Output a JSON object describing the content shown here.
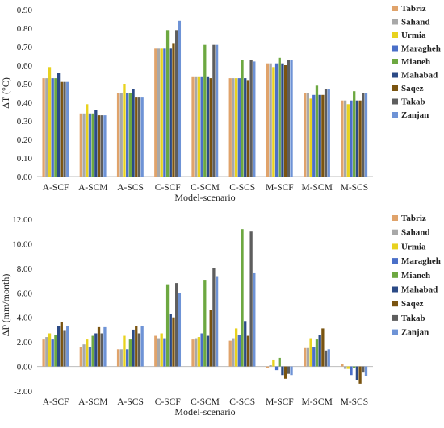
{
  "chart_data": [
    {
      "type": "bar",
      "ylabel": "ΔT (°C)",
      "xlabel": "Model-scenario",
      "categories": [
        "A-SCF",
        "A-SCM",
        "A-SCS",
        "C-SCF",
        "C-SCM",
        "C-SCS",
        "M-SCF",
        "M-SCM",
        "M-SCS"
      ],
      "ylim": [
        0,
        0.9
      ],
      "yticks": [
        "0.00",
        "0.10",
        "0.20",
        "0.30",
        "0.40",
        "0.50",
        "0.60",
        "0.70",
        "0.80",
        "0.90"
      ],
      "legend_position": "right",
      "series": [
        {
          "name": "Tabriz",
          "values": [
            0.53,
            0.34,
            0.45,
            0.69,
            0.54,
            0.53,
            0.61,
            0.45,
            0.41
          ]
        },
        {
          "name": "Sahand",
          "values": [
            0.53,
            0.34,
            0.45,
            0.69,
            0.54,
            0.53,
            0.61,
            0.45,
            0.41
          ]
        },
        {
          "name": "Urmia",
          "values": [
            0.59,
            0.39,
            0.5,
            0.69,
            0.54,
            0.53,
            0.59,
            0.42,
            0.39
          ]
        },
        {
          "name": "Maragheh",
          "values": [
            0.53,
            0.34,
            0.45,
            0.69,
            0.54,
            0.53,
            0.61,
            0.44,
            0.41
          ]
        },
        {
          "name": "Mianeh",
          "values": [
            0.53,
            0.34,
            0.45,
            0.79,
            0.71,
            0.63,
            0.64,
            0.49,
            0.46
          ]
        },
        {
          "name": "Mahabad",
          "values": [
            0.56,
            0.36,
            0.47,
            0.69,
            0.54,
            0.53,
            0.61,
            0.44,
            0.41
          ]
        },
        {
          "name": "Saqez",
          "values": [
            0.51,
            0.33,
            0.43,
            0.72,
            0.53,
            0.52,
            0.6,
            0.44,
            0.41
          ]
        },
        {
          "name": "Takab",
          "values": [
            0.51,
            0.33,
            0.43,
            0.79,
            0.71,
            0.63,
            0.63,
            0.47,
            0.45
          ]
        },
        {
          "name": "Zanjan",
          "values": [
            0.51,
            0.33,
            0.43,
            0.84,
            0.71,
            0.62,
            0.63,
            0.47,
            0.45
          ]
        }
      ]
    },
    {
      "type": "bar",
      "ylabel": "ΔP (mm/month)",
      "xlabel": "Model-scenario",
      "categories": [
        "A-SCF",
        "A-SCM",
        "A-SCS",
        "C-SCF",
        "C-SCM",
        "C-SCS",
        "M-SCF",
        "M-SCM",
        "M-SCS"
      ],
      "ylim": [
        -2,
        12
      ],
      "yticks": [
        "-2.00",
        "0.00",
        "2.00",
        "4.00",
        "6.00",
        "8.00",
        "10.00",
        "12.00"
      ],
      "legend_position": "right",
      "series": [
        {
          "name": "Tabriz",
          "values": [
            2.2,
            1.6,
            1.4,
            2.5,
            2.2,
            2.1,
            -0.1,
            1.5,
            0.2
          ]
        },
        {
          "name": "Sahand",
          "values": [
            2.4,
            1.8,
            1.4,
            2.3,
            2.3,
            2.3,
            0.1,
            1.5,
            -0.2
          ]
        },
        {
          "name": "Urmia",
          "values": [
            2.7,
            2.2,
            2.5,
            2.7,
            2.4,
            3.1,
            0.5,
            2.3,
            -0.2
          ]
        },
        {
          "name": "Maragheh",
          "values": [
            2.2,
            1.6,
            1.4,
            2.3,
            2.7,
            2.6,
            -0.3,
            1.6,
            -0.7
          ]
        },
        {
          "name": "Mianeh",
          "values": [
            2.6,
            2.5,
            2.2,
            6.7,
            7.0,
            11.2,
            0.7,
            2.2,
            -0.1
          ]
        },
        {
          "name": "Mahabad",
          "values": [
            3.3,
            2.7,
            3.0,
            4.3,
            2.5,
            3.7,
            -0.7,
            2.6,
            -1.1
          ]
        },
        {
          "name": "Saqez",
          "values": [
            3.6,
            3.2,
            3.3,
            4.0,
            4.6,
            2.5,
            -1.0,
            3.1,
            -1.4
          ]
        },
        {
          "name": "Takab",
          "values": [
            2.9,
            2.7,
            2.7,
            6.8,
            8.0,
            11.0,
            -0.6,
            1.3,
            -0.5
          ]
        },
        {
          "name": "Zanjan",
          "values": [
            3.3,
            3.2,
            3.3,
            6.0,
            7.3,
            7.6,
            -0.7,
            1.4,
            -0.8
          ]
        }
      ]
    }
  ],
  "colors": [
    "#e0a36b",
    "#a8a8a8",
    "#e8d21e",
    "#4a6fc8",
    "#6da841",
    "#2b4a86",
    "#7a5410",
    "#5e5e5e",
    "#6e93d6"
  ]
}
